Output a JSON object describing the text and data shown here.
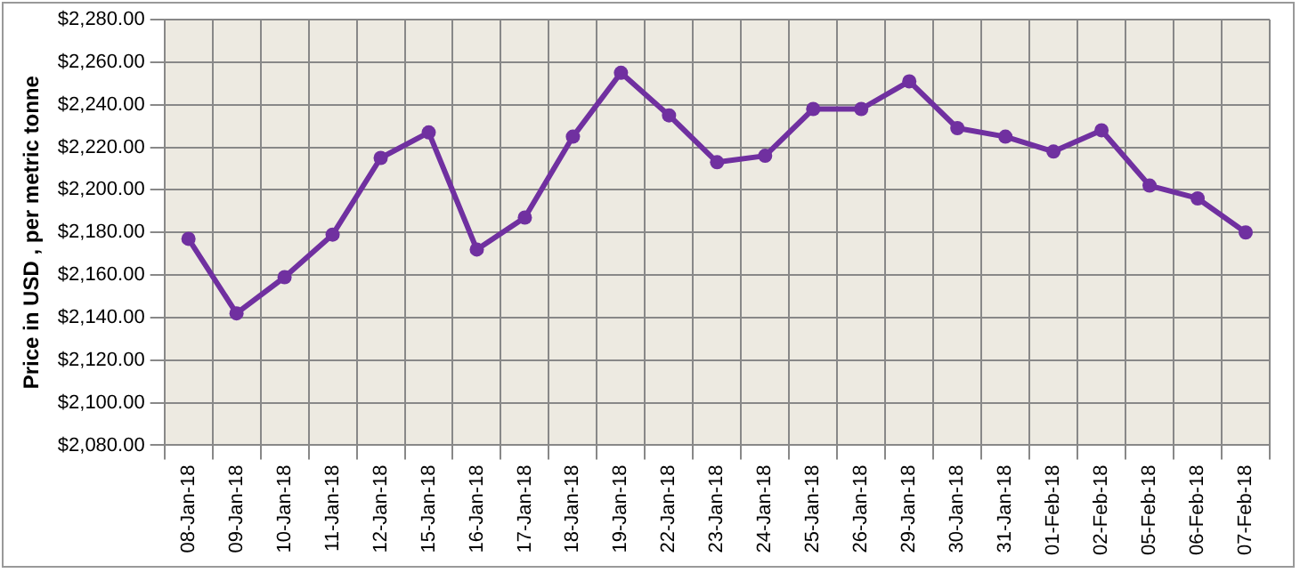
{
  "chart_data": {
    "type": "line",
    "ylabel": "Price in USD , per metric tonne",
    "categories": [
      "08-Jan-18",
      "09-Jan-18",
      "10-Jan-18",
      "11-Jan-18",
      "12-Jan-18",
      "15-Jan-18",
      "16-Jan-18",
      "17-Jan-18",
      "18-Jan-18",
      "19-Jan-18",
      "22-Jan-18",
      "23-Jan-18",
      "24-Jan-18",
      "25-Jan-18",
      "26-Jan-18",
      "29-Jan-18",
      "30-Jan-18",
      "31-Jan-18",
      "01-Feb-18",
      "02-Feb-18",
      "05-Feb-18",
      "06-Feb-18",
      "07-Feb-18"
    ],
    "series": [
      {
        "color": "#7030a0",
        "values": [
          2177,
          2142,
          2159,
          2179,
          2215,
          2227,
          2172,
          2187,
          2225,
          2255,
          2235,
          2213,
          2216,
          2238,
          2238,
          2251,
          2229,
          2225,
          2218,
          2228,
          2202,
          2196,
          2180
        ]
      }
    ],
    "ylim": [
      2080,
      2280
    ],
    "yticks": [
      {
        "value": 2080,
        "label": "$2,080.00"
      },
      {
        "value": 2100,
        "label": "$2,100.00"
      },
      {
        "value": 2120,
        "label": "$2,120.00"
      },
      {
        "value": 2140,
        "label": "$2,140.00"
      },
      {
        "value": 2160,
        "label": "$2,160.00"
      },
      {
        "value": 2180,
        "label": "$2,180.00"
      },
      {
        "value": 2200,
        "label": "$2,200.00"
      },
      {
        "value": 2220,
        "label": "$2,220.00"
      },
      {
        "value": 2240,
        "label": "$2,240.00"
      },
      {
        "value": 2260,
        "label": "$2,260.00"
      },
      {
        "value": 2280,
        "label": "$2,280.00"
      }
    ],
    "grid": true,
    "legend": false,
    "marker": "circle",
    "line_style": "solid"
  }
}
